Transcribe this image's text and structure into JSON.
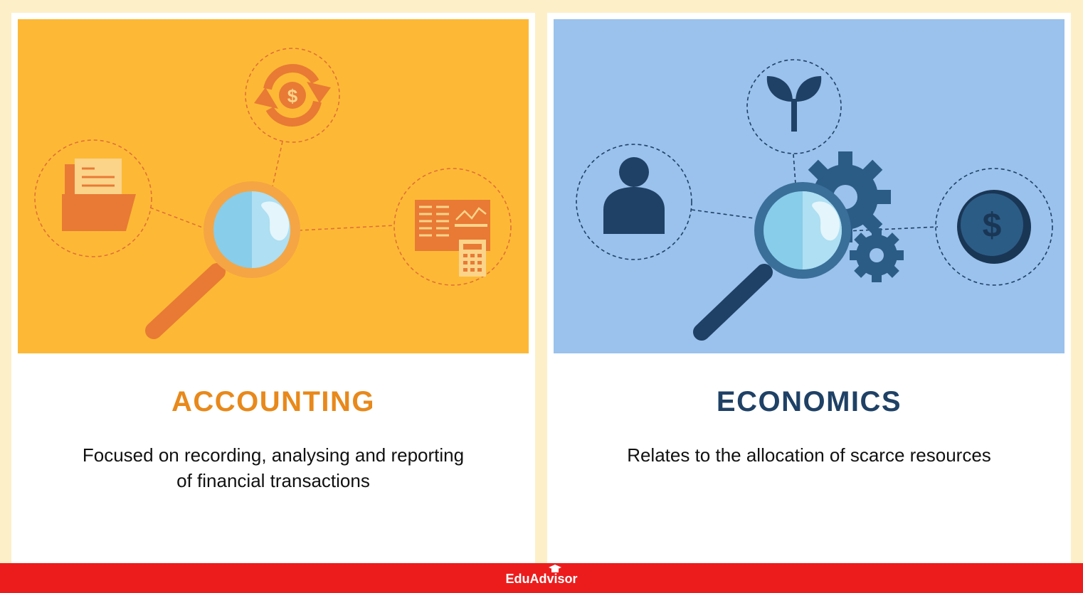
{
  "cards": [
    {
      "title": "ACCOUNTING",
      "description_line1": "Focused on recording, analysing and reporting",
      "description_line2": "of financial transactions",
      "colors": {
        "background": "#fdb935",
        "accent": "#e8891b",
        "icon": "#e87a35"
      },
      "icons": [
        "magnifying-glass-icon",
        "folder-document-icon",
        "dollar-refresh-icon",
        "spreadsheet-calculator-icon"
      ]
    },
    {
      "title": "ECONOMICS",
      "description_line1": "Relates to the allocation of scarce resources",
      "description_line2": "",
      "colors": {
        "background": "#9ac2ec",
        "accent": "#1f4166",
        "icon": "#1f4166"
      },
      "icons": [
        "magnifying-glass-icon",
        "person-icon",
        "plant-sprout-icon",
        "gears-icon",
        "dollar-coin-icon"
      ]
    }
  ],
  "footer": {
    "brand": "EduAdvisor",
    "color": "#ed1c1c"
  }
}
